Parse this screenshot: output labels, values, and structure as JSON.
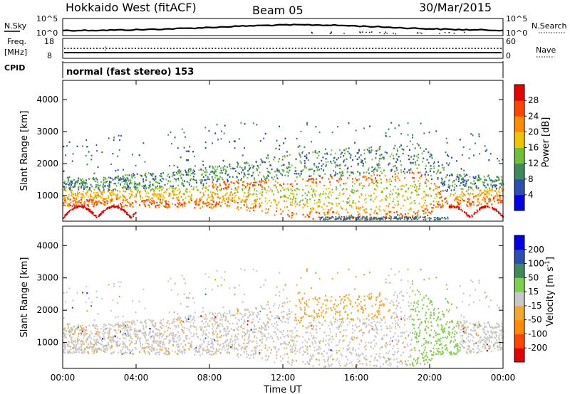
{
  "header": {
    "station": "Hokkaido West (fitACF)",
    "beam": "Beam 05",
    "date": "30/Mar/2015"
  },
  "top_panel": {
    "nsky_label": "N.Sky",
    "nsky_ticks": [
      "10^5",
      "10^0"
    ],
    "nsearch_label": "N.Search",
    "nsearch_ticks": [
      "10^5",
      "10^0"
    ],
    "freq_label": "Freq.",
    "freq_unit": "[MHz]",
    "freq_ticks": [
      "18",
      "8"
    ],
    "nave_label": "Nave",
    "nave_ticks": [
      "60",
      "0"
    ],
    "cpid_label": "CPID",
    "cpid_text": "normal (fast stereo) 153"
  },
  "colors": {
    "power": [
      "#0000e6",
      "#2a4fb0",
      "#3c8c5a",
      "#6fbf3a",
      "#f2c300",
      "#ff8c00",
      "#ff4500",
      "#e60000"
    ],
    "velocity": [
      "#e60000",
      "#ff4500",
      "#ff8c00",
      "#f2a830",
      "#c8c8c8",
      "#7fd04a",
      "#3c8c5a",
      "#2a4fb0",
      "#0000e6"
    ]
  },
  "chart_data": [
    {
      "type": "heatmap",
      "panel": "power",
      "ylabel": "Slant Range [km]",
      "y_ticks": [
        1000,
        2000,
        3000,
        4000
      ],
      "ylim": [
        200,
        4600
      ],
      "x_ticks": [
        "00:00",
        "04:00",
        "08:00",
        "12:00",
        "16:00",
        "20:00",
        "00:00"
      ],
      "colorbar": {
        "label": "Power [dB]",
        "ticks": [
          "4",
          "8",
          "12",
          "16",
          "20",
          "24",
          "28"
        ]
      }
    },
    {
      "type": "heatmap",
      "panel": "velocity",
      "ylabel": "Slant Range [km]",
      "y_ticks": [
        1000,
        2000,
        3000,
        4000
      ],
      "ylim": [
        200,
        4600
      ],
      "x_ticks": [
        "00:00",
        "04:00",
        "08:00",
        "12:00",
        "16:00",
        "20:00",
        "00:00"
      ],
      "xlabel": "Time UT",
      "colorbar": {
        "label": "Velocity [m s",
        "label_exp": "-1",
        "label_end": "]",
        "ticks": [
          "200",
          "100",
          "50",
          "15",
          "-15",
          "-50",
          "-100",
          "-200"
        ]
      }
    }
  ]
}
